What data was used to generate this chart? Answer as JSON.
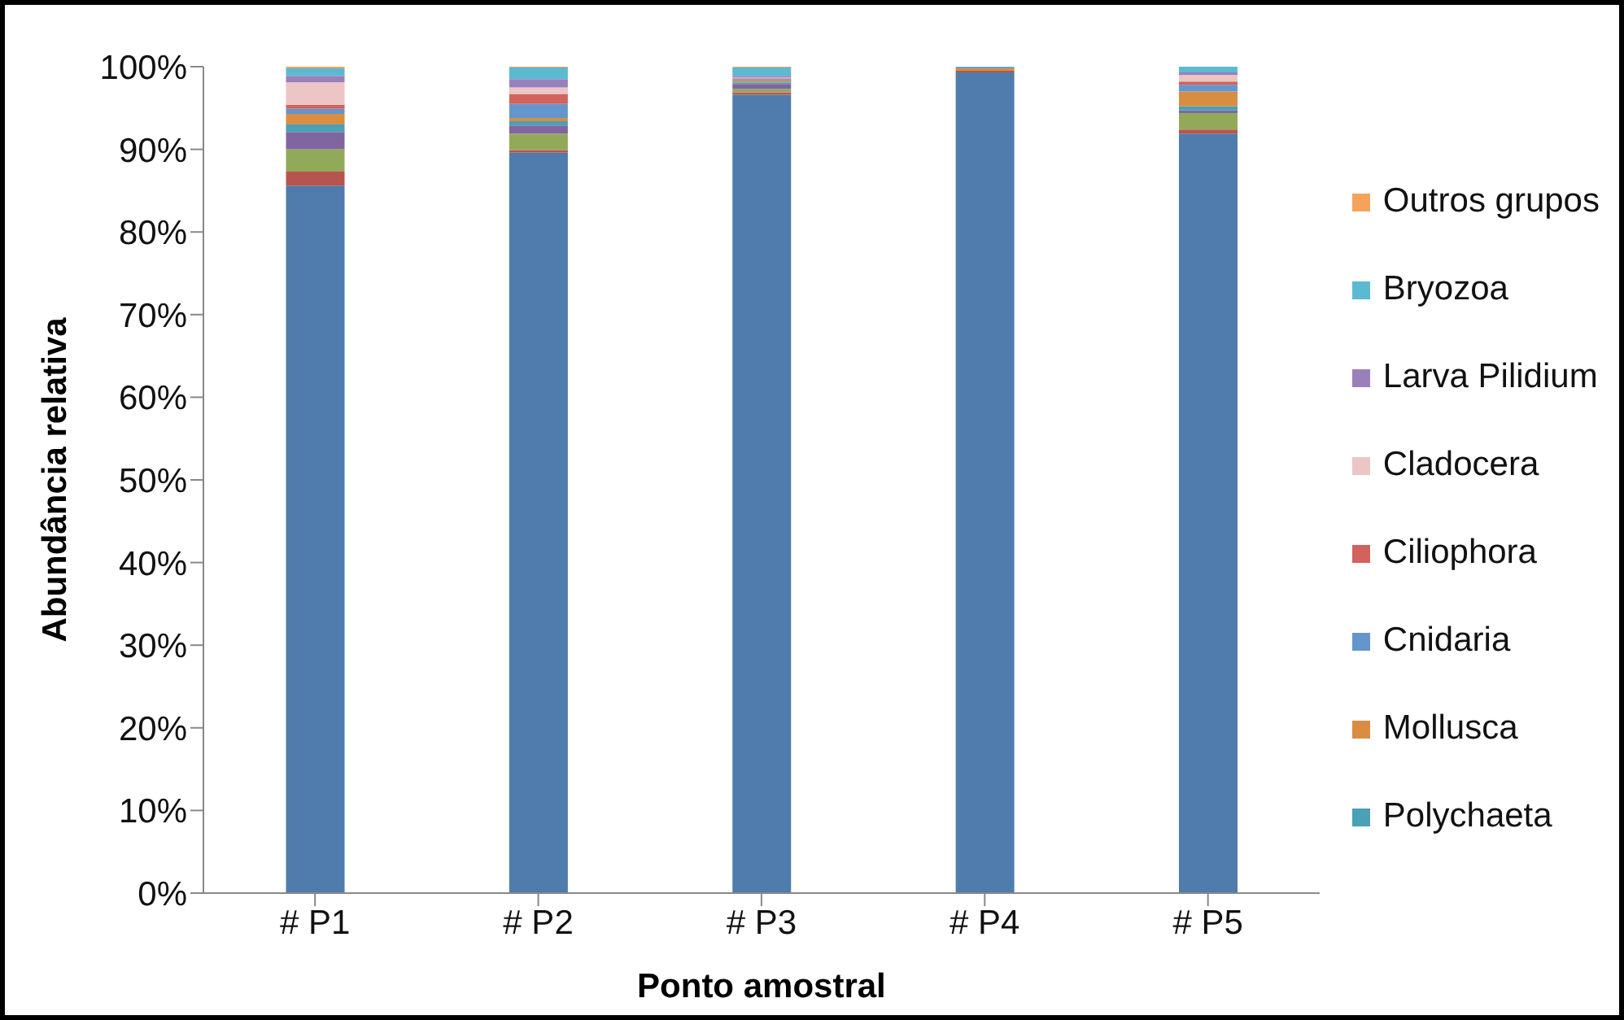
{
  "chart_data": {
    "type": "bar",
    "stacked": true,
    "xlabel": "Ponto amostral",
    "ylabel": "Abundância relativa",
    "categories": [
      "# P1",
      "# P2",
      "# P3",
      "# P4",
      "# P5"
    ],
    "ylim": [
      0,
      100
    ],
    "yticks": [
      {
        "value": 0,
        "label": "0%"
      },
      {
        "value": 10,
        "label": "10%"
      },
      {
        "value": 20,
        "label": "20%"
      },
      {
        "value": 30,
        "label": "30%"
      },
      {
        "value": 40,
        "label": "40%"
      },
      {
        "value": 50,
        "label": "50%"
      },
      {
        "value": 60,
        "label": "60%"
      },
      {
        "value": 70,
        "label": "70%"
      },
      {
        "value": 80,
        "label": "80%"
      },
      {
        "value": 90,
        "label": "90%"
      },
      {
        "value": 100,
        "label": "100%"
      }
    ],
    "grid": false,
    "legend": "right",
    "series": [
      {
        "color": "#4f7cac",
        "values": [
          85.6,
          89.6,
          96.6,
          99.3,
          91.9
        ]
      },
      {
        "color": "#b85450",
        "values": [
          1.7,
          0.3,
          0.3,
          0.2,
          0.5
        ]
      },
      {
        "color": "#93a95a",
        "values": [
          2.7,
          2.0,
          0.4,
          0,
          2.0
        ]
      },
      {
        "color": "#7f66a0",
        "values": [
          2.1,
          1.0,
          0.6,
          0,
          0.3
        ]
      },
      {
        "name": "Polychaeta",
        "color": "#4aa0b5",
        "values": [
          0.9,
          0.5,
          0.2,
          0,
          0.5
        ]
      },
      {
        "name": "Mollusca",
        "color": "#d98d43",
        "values": [
          1.3,
          0.4,
          0.2,
          0.3,
          1.8
        ]
      },
      {
        "name": "Cnidaria",
        "color": "#6496cc",
        "values": [
          0.6,
          1.7,
          0.2,
          0.1,
          0.8
        ]
      },
      {
        "name": "Ciliophora",
        "color": "#d1625d",
        "values": [
          0.5,
          1.2,
          0.1,
          0,
          0.4
        ]
      },
      {
        "name": "Cladocera",
        "color": "#ecc5c5",
        "values": [
          2.7,
          0.8,
          0.1,
          0,
          0.8
        ]
      },
      {
        "name": "Larva Pilidium",
        "color": "#9a80bb",
        "values": [
          0.8,
          1.0,
          0.2,
          0,
          0.3
        ]
      },
      {
        "name": "Bryozoa",
        "color": "#5bbad2",
        "values": [
          0.9,
          1.4,
          1.0,
          0.1,
          0.7
        ]
      },
      {
        "name": "Outros grupos",
        "color": "#f5a35a",
        "values": [
          0.2,
          0.1,
          0.1,
          0,
          0
        ]
      }
    ]
  }
}
